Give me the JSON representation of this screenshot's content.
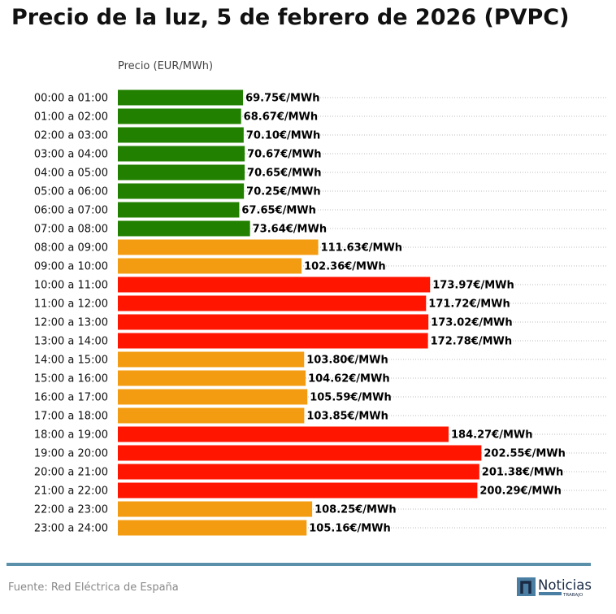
{
  "title": "Precio de la luz, 5 de febrero de 2026 (PVPC)",
  "footer": {
    "source": "Fuente: Red Eléctrica de España",
    "logo_text": "Noticias",
    "logo_subtext": "TRABAJO"
  },
  "chart_data": {
    "type": "bar",
    "orientation": "horizontal",
    "title": "Precio de la luz, 5 de febrero de 2026 (PVPC)",
    "xlabel": "Precio (EUR/MWh)",
    "value_suffix": "€/MWh",
    "xlim": [
      0,
      273
    ],
    "grid": "dotted horizontal row lines",
    "colors": {
      "low": "#228000",
      "mid": "#f39c12",
      "high": "#ff1500"
    },
    "categories": [
      "00:00 a 01:00",
      "01:00 a 02:00",
      "02:00 a 03:00",
      "03:00 a 04:00",
      "04:00 a 05:00",
      "05:00 a 06:00",
      "06:00 a 07:00",
      "07:00 a 08:00",
      "08:00 a 09:00",
      "09:00 a 10:00",
      "10:00 a 11:00",
      "11:00 a 12:00",
      "12:00 a 13:00",
      "13:00 a 14:00",
      "14:00 a 15:00",
      "15:00 a 16:00",
      "16:00 a 17:00",
      "17:00 a 18:00",
      "18:00 a 19:00",
      "19:00 a 20:00",
      "20:00 a 21:00",
      "21:00 a 22:00",
      "22:00 a 23:00",
      "23:00 a 24:00"
    ],
    "values": [
      69.75,
      68.67,
      70.1,
      70.67,
      70.65,
      70.25,
      67.65,
      73.64,
      111.63,
      102.36,
      173.97,
      171.72,
      173.02,
      172.78,
      103.8,
      104.62,
      105.59,
      103.85,
      184.27,
      202.55,
      201.38,
      200.29,
      108.25,
      105.16
    ],
    "levels": [
      "low",
      "low",
      "low",
      "low",
      "low",
      "low",
      "low",
      "low",
      "mid",
      "mid",
      "high",
      "high",
      "high",
      "high",
      "mid",
      "mid",
      "mid",
      "mid",
      "high",
      "high",
      "high",
      "high",
      "mid",
      "mid"
    ]
  }
}
